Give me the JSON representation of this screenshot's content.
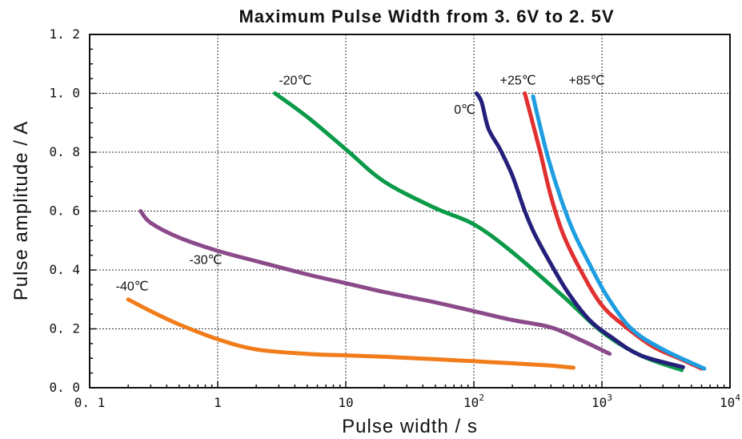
{
  "chart_data": {
    "type": "line",
    "title": "Maximum Pulse Width from 3. 6V to 2. 5V",
    "xlabel": "Pulse width / s",
    "ylabel": "Pulse amplitude / A",
    "x_scale": "log",
    "xlim": [
      0.1,
      10000
    ],
    "ylim": [
      0.0,
      1.2
    ],
    "grid": true,
    "x_ticks": [
      {
        "value": 0.1,
        "label": "0. 1"
      },
      {
        "value": 1,
        "label": "1"
      },
      {
        "value": 10,
        "label": "10"
      },
      {
        "value": 100,
        "label": "10",
        "exp": "2"
      },
      {
        "value": 1000,
        "label": "10",
        "exp": "3"
      },
      {
        "value": 10000,
        "label": "10",
        "exp": "4"
      }
    ],
    "y_ticks": [
      {
        "value": 0.0,
        "label": "0. 0"
      },
      {
        "value": 0.2,
        "label": "0. 2"
      },
      {
        "value": 0.4,
        "label": "0. 4"
      },
      {
        "value": 0.6,
        "label": "0. 6"
      },
      {
        "value": 0.8,
        "label": "0. 8"
      },
      {
        "value": 1.0,
        "label": "1. 0"
      },
      {
        "value": 1.2,
        "label": "1. 2"
      }
    ],
    "series": [
      {
        "name": "-20℃",
        "color": "#0a9a48",
        "points": [
          [
            2.8,
            1.0
          ],
          [
            5,
            0.92
          ],
          [
            10,
            0.81
          ],
          [
            20,
            0.7
          ],
          [
            50,
            0.61
          ],
          [
            100,
            0.555
          ],
          [
            200,
            0.46
          ],
          [
            500,
            0.31
          ],
          [
            1000,
            0.19
          ],
          [
            2000,
            0.11
          ],
          [
            4200,
            0.06
          ]
        ]
      },
      {
        "name": "-30℃",
        "color": "#8b4a8a",
        "points": [
          [
            0.25,
            0.6
          ],
          [
            0.3,
            0.56
          ],
          [
            0.5,
            0.51
          ],
          [
            1,
            0.465
          ],
          [
            2,
            0.43
          ],
          [
            5,
            0.385
          ],
          [
            10,
            0.355
          ],
          [
            20,
            0.325
          ],
          [
            50,
            0.29
          ],
          [
            100,
            0.26
          ],
          [
            200,
            0.23
          ],
          [
            400,
            0.205
          ],
          [
            700,
            0.16
          ],
          [
            1150,
            0.115
          ]
        ]
      },
      {
        "name": "-40℃",
        "color": "#f07c1a",
        "points": [
          [
            0.2,
            0.3
          ],
          [
            0.3,
            0.26
          ],
          [
            0.5,
            0.215
          ],
          [
            1,
            0.165
          ],
          [
            2,
            0.13
          ],
          [
            5,
            0.115
          ],
          [
            10,
            0.11
          ],
          [
            20,
            0.105
          ],
          [
            50,
            0.097
          ],
          [
            100,
            0.09
          ],
          [
            200,
            0.083
          ],
          [
            400,
            0.075
          ],
          [
            600,
            0.068
          ]
        ]
      },
      {
        "name": "0℃",
        "color": "#241f7a",
        "points": [
          [
            105,
            1.0
          ],
          [
            115,
            0.97
          ],
          [
            130,
            0.88
          ],
          [
            160,
            0.81
          ],
          [
            200,
            0.72
          ],
          [
            250,
            0.6
          ],
          [
            300,
            0.52
          ],
          [
            400,
            0.42
          ],
          [
            550,
            0.32
          ],
          [
            800,
            0.23
          ],
          [
            1200,
            0.17
          ],
          [
            2000,
            0.11
          ],
          [
            4300,
            0.07
          ]
        ]
      },
      {
        "name": "+25℃",
        "color": "#e03030",
        "points": [
          [
            250,
            1.0
          ],
          [
            280,
            0.92
          ],
          [
            330,
            0.8
          ],
          [
            400,
            0.65
          ],
          [
            500,
            0.52
          ],
          [
            700,
            0.39
          ],
          [
            1000,
            0.28
          ],
          [
            1500,
            0.21
          ],
          [
            2500,
            0.14
          ],
          [
            4000,
            0.1
          ],
          [
            6000,
            0.065
          ]
        ]
      },
      {
        "name": "+85℃",
        "color": "#1e9ee0",
        "points": [
          [
            290,
            0.99
          ],
          [
            320,
            0.91
          ],
          [
            380,
            0.78
          ],
          [
            480,
            0.64
          ],
          [
            600,
            0.53
          ],
          [
            800,
            0.42
          ],
          [
            1100,
            0.31
          ],
          [
            1700,
            0.2
          ],
          [
            3000,
            0.13
          ],
          [
            6300,
            0.065
          ]
        ]
      }
    ],
    "annotations": [
      {
        "text": "-20℃",
        "series": "-20℃",
        "x": 3,
        "y": 1.03
      },
      {
        "text": "-30℃",
        "series": "-30℃",
        "x": 0.6,
        "y": 0.42
      },
      {
        "text": "-40℃",
        "series": "-40℃",
        "x": 0.16,
        "y": 0.33
      },
      {
        "text": "0℃",
        "series": "0℃",
        "x": 70,
        "y": 0.93
      },
      {
        "text": "+25℃",
        "series": "+25℃",
        "x": 160,
        "y": 1.03
      },
      {
        "text": "+85℃",
        "series": "+85℃",
        "x": 550,
        "y": 1.03
      }
    ]
  }
}
